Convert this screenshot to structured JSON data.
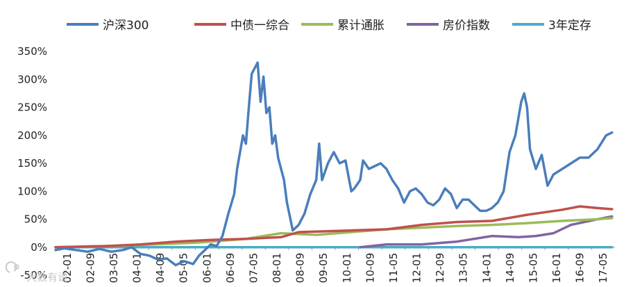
{
  "chart_data": {
    "type": "line",
    "title": "",
    "xlabel": "",
    "ylabel": "",
    "ylim": [
      -50,
      350
    ],
    "yticks": [
      -50,
      0,
      50,
      100,
      150,
      200,
      250,
      300,
      350
    ],
    "ytick_labels": [
      "-50%",
      "0%",
      "50%",
      "100%",
      "150%",
      "200%",
      "250%",
      "300%",
      "350%"
    ],
    "xlim": [
      "2002-01",
      "2017-12"
    ],
    "xtick_labels": [
      "02-01",
      "02-09",
      "03-05",
      "04-01",
      "04-09",
      "05-05",
      "06-01",
      "06-09",
      "07-05",
      "08-01",
      "08-09",
      "09-05",
      "10-01",
      "10-09",
      "11-05",
      "12-01",
      "12-09",
      "13-05",
      "14-01",
      "14-09",
      "15-05",
      "16-01",
      "16-09",
      "17-05"
    ],
    "legend_position": "top",
    "grid": false,
    "series": [
      {
        "name": "沪深300",
        "color": "#4a7ebb",
        "points": [
          [
            "2002-01",
            -5
          ],
          [
            "2002-04",
            -2
          ],
          [
            "2002-08",
            -5
          ],
          [
            "2002-12",
            -8
          ],
          [
            "2003-04",
            -3
          ],
          [
            "2003-08",
            -8
          ],
          [
            "2003-12",
            -5
          ],
          [
            "2004-03",
            0
          ],
          [
            "2004-06",
            -12
          ],
          [
            "2004-09",
            -15
          ],
          [
            "2004-12",
            -22
          ],
          [
            "2005-03",
            -20
          ],
          [
            "2005-06",
            -32
          ],
          [
            "2005-09",
            -25
          ],
          [
            "2005-12",
            -30
          ],
          [
            "2006-02",
            -15
          ],
          [
            "2006-04",
            -5
          ],
          [
            "2006-06",
            5
          ],
          [
            "2006-08",
            2
          ],
          [
            "2006-10",
            20
          ],
          [
            "2006-12",
            60
          ],
          [
            "2007-02",
            95
          ],
          [
            "2007-03",
            140
          ],
          [
            "2007-05",
            200
          ],
          [
            "2007-06",
            185
          ],
          [
            "2007-07",
            250
          ],
          [
            "2007-08",
            310
          ],
          [
            "2007-10",
            330
          ],
          [
            "2007-11",
            260
          ],
          [
            "2007-12",
            305
          ],
          [
            "2008-01",
            240
          ],
          [
            "2008-02",
            250
          ],
          [
            "2008-03",
            185
          ],
          [
            "2008-04",
            200
          ],
          [
            "2008-05",
            160
          ],
          [
            "2008-07",
            120
          ],
          [
            "2008-08",
            80
          ],
          [
            "2008-10",
            30
          ],
          [
            "2008-12",
            40
          ],
          [
            "2009-02",
            60
          ],
          [
            "2009-04",
            95
          ],
          [
            "2009-06",
            120
          ],
          [
            "2009-07",
            185
          ],
          [
            "2009-08",
            120
          ],
          [
            "2009-10",
            150
          ],
          [
            "2009-12",
            170
          ],
          [
            "2010-02",
            150
          ],
          [
            "2010-04",
            155
          ],
          [
            "2010-06",
            100
          ],
          [
            "2010-07",
            105
          ],
          [
            "2010-09",
            120
          ],
          [
            "2010-10",
            155
          ],
          [
            "2010-12",
            140
          ],
          [
            "2011-02",
            145
          ],
          [
            "2011-04",
            150
          ],
          [
            "2011-06",
            140
          ],
          [
            "2011-08",
            120
          ],
          [
            "2011-10",
            105
          ],
          [
            "2011-12",
            80
          ],
          [
            "2012-02",
            100
          ],
          [
            "2012-04",
            105
          ],
          [
            "2012-06",
            95
          ],
          [
            "2012-08",
            80
          ],
          [
            "2012-10",
            75
          ],
          [
            "2012-12",
            85
          ],
          [
            "2013-02",
            105
          ],
          [
            "2013-04",
            95
          ],
          [
            "2013-06",
            70
          ],
          [
            "2013-08",
            85
          ],
          [
            "2013-10",
            85
          ],
          [
            "2013-12",
            75
          ],
          [
            "2014-02",
            65
          ],
          [
            "2014-04",
            65
          ],
          [
            "2014-06",
            70
          ],
          [
            "2014-08",
            80
          ],
          [
            "2014-10",
            100
          ],
          [
            "2014-12",
            170
          ],
          [
            "2015-02",
            200
          ],
          [
            "2015-04",
            260
          ],
          [
            "2015-05",
            275
          ],
          [
            "2015-06",
            250
          ],
          [
            "2015-07",
            175
          ],
          [
            "2015-09",
            140
          ],
          [
            "2015-11",
            165
          ],
          [
            "2016-01",
            110
          ],
          [
            "2016-03",
            130
          ],
          [
            "2016-06",
            140
          ],
          [
            "2016-09",
            150
          ],
          [
            "2016-12",
            160
          ],
          [
            "2017-03",
            160
          ],
          [
            "2017-06",
            175
          ],
          [
            "2017-09",
            200
          ],
          [
            "2017-11",
            205
          ]
        ]
      },
      {
        "name": "中债一综合",
        "color": "#c0504d",
        "points": [
          [
            "2002-01",
            0
          ],
          [
            "2003-06",
            2
          ],
          [
            "2004-06",
            5
          ],
          [
            "2005-06",
            10
          ],
          [
            "2006-06",
            13
          ],
          [
            "2007-06",
            15
          ],
          [
            "2008-06",
            18
          ],
          [
            "2008-12",
            27
          ],
          [
            "2009-06",
            28
          ],
          [
            "2010-06",
            30
          ],
          [
            "2011-06",
            32
          ],
          [
            "2012-06",
            40
          ],
          [
            "2013-06",
            45
          ],
          [
            "2014-06",
            47
          ],
          [
            "2015-06",
            58
          ],
          [
            "2016-06",
            67
          ],
          [
            "2016-12",
            73
          ],
          [
            "2017-06",
            70
          ],
          [
            "2017-11",
            68
          ]
        ]
      },
      {
        "name": "累计通胀",
        "color": "#9bbb59",
        "points": [
          [
            "2002-01",
            0
          ],
          [
            "2004-01",
            3
          ],
          [
            "2006-01",
            8
          ],
          [
            "2007-06",
            15
          ],
          [
            "2008-06",
            25
          ],
          [
            "2009-06",
            22
          ],
          [
            "2010-06",
            27
          ],
          [
            "2011-06",
            32
          ],
          [
            "2012-06",
            35
          ],
          [
            "2013-06",
            38
          ],
          [
            "2014-06",
            40
          ],
          [
            "2015-06",
            43
          ],
          [
            "2016-06",
            47
          ],
          [
            "2017-06",
            50
          ],
          [
            "2017-11",
            52
          ]
        ]
      },
      {
        "name": "房价指数",
        "color": "#8064a2",
        "points": [
          [
            "2010-09",
            0
          ],
          [
            "2011-06",
            5
          ],
          [
            "2012-06",
            5
          ],
          [
            "2013-06",
            10
          ],
          [
            "2014-06",
            20
          ],
          [
            "2015-03",
            18
          ],
          [
            "2015-09",
            20
          ],
          [
            "2016-03",
            25
          ],
          [
            "2016-09",
            40
          ],
          [
            "2017-06",
            50
          ],
          [
            "2017-11",
            55
          ]
        ]
      },
      {
        "name": "3年定存",
        "color": "#4bacc6",
        "points": [
          [
            "2002-01",
            0
          ],
          [
            "2017-11",
            0
          ]
        ]
      }
    ]
  },
  "watermark": {
    "text": "大数有说",
    "icon": "brand-logo-icon"
  }
}
